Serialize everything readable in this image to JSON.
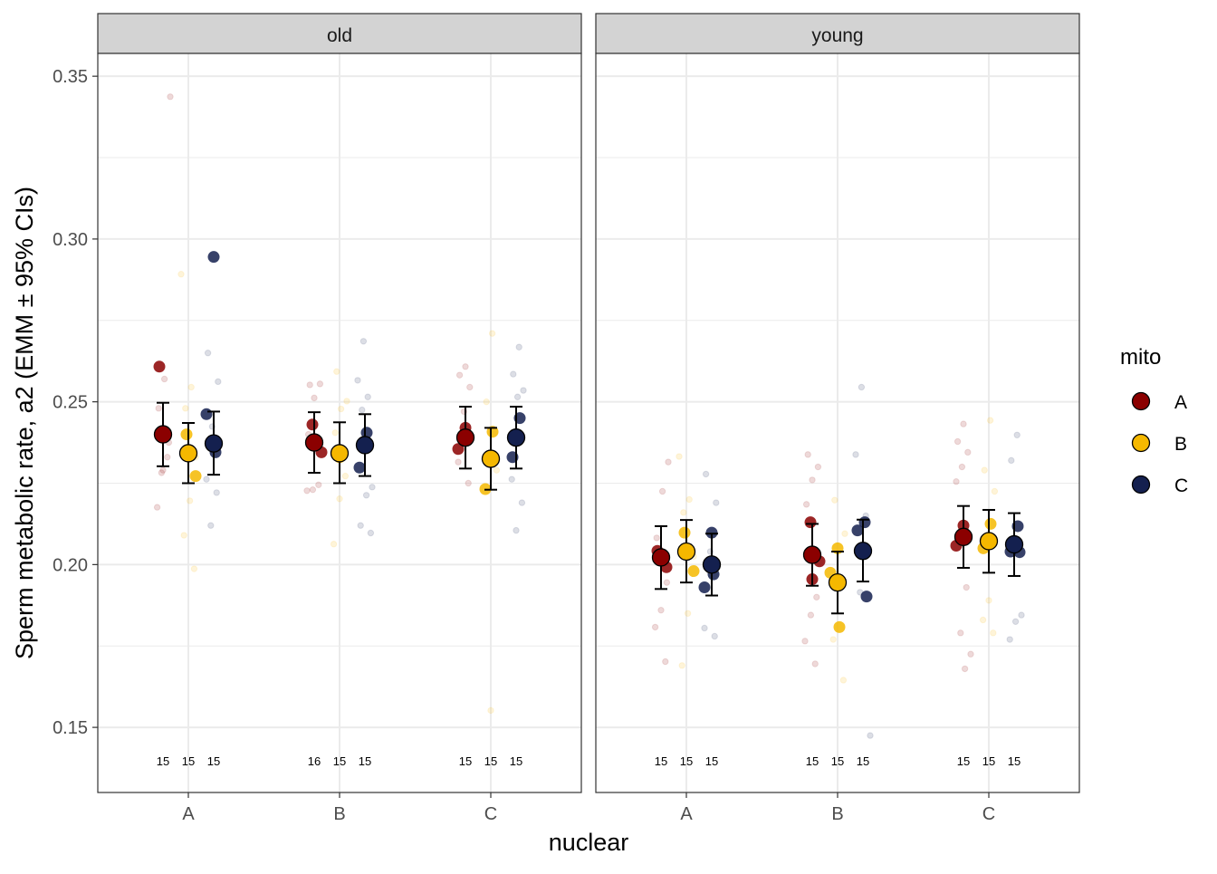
{
  "chart_data": {
    "type": "scatter",
    "subtype": "faceted dot plot with error bars (EMM ± 95% CI) and jittered raw points",
    "ylabel": "Sperm metabolic rate, a2 (EMM ± 95% CIs)",
    "xlabel": "nuclear",
    "ylim": [
      0.13,
      0.357
    ],
    "y_ticks": [
      "0.15",
      "0.20",
      "0.25",
      "0.30",
      "0.35"
    ],
    "categories": [
      "A",
      "B",
      "C"
    ],
    "legend": {
      "title": "mito",
      "position": "right",
      "entries": [
        {
          "label": "A",
          "color": "#8B0000"
        },
        {
          "label": "B",
          "color": "#F5B800"
        },
        {
          "label": "C",
          "color": "#14204F"
        }
      ]
    },
    "facets": [
      {
        "label": "old",
        "groups": [
          {
            "nuclear": "A",
            "mito": "A",
            "emm": 0.24,
            "lower": 0.2302,
            "upper": 0.2497,
            "n": "15",
            "sig": [
              0.2608
            ],
            "raw": [
              0.3437,
              0.257,
              0.248,
              0.2375,
              0.229,
              0.2176,
              0.233,
              0.2282
            ]
          },
          {
            "nuclear": "A",
            "mito": "B",
            "emm": 0.2342,
            "lower": 0.225,
            "upper": 0.2435,
            "n": "15",
            "sig": [
              0.24,
              0.2272
            ],
            "raw": [
              0.2892,
              0.2545,
              0.248,
              0.233,
              0.2196,
              0.209,
              0.1987
            ]
          },
          {
            "nuclear": "A",
            "mito": "C",
            "emm": 0.2372,
            "lower": 0.2276,
            "upper": 0.247,
            "n": "15",
            "sig": [
              0.2945,
              0.2462,
              0.2345
            ],
            "raw": [
              0.265,
              0.2562,
              0.2424,
              0.2262,
              0.2221,
              0.212
            ]
          },
          {
            "nuclear": "B",
            "mito": "A",
            "emm": 0.2375,
            "lower": 0.2282,
            "upper": 0.2468,
            "n": "16",
            "sig": [
              0.243,
              0.2345
            ],
            "raw": [
              0.2552,
              0.2555,
              0.2512,
              0.24,
              0.2245,
              0.223,
              0.2227
            ]
          },
          {
            "nuclear": "B",
            "mito": "B",
            "emm": 0.2342,
            "lower": 0.225,
            "upper": 0.2437,
            "n": "15",
            "sig": [
              0.233
            ],
            "raw": [
              0.2593,
              0.2502,
              0.2478,
              0.2405,
              0.2272,
              0.2202,
              0.2063
            ]
          },
          {
            "nuclear": "B",
            "mito": "C",
            "emm": 0.2367,
            "lower": 0.2272,
            "upper": 0.2462,
            "n": "15",
            "sig": [
              0.2405,
              0.2298
            ],
            "raw": [
              0.2686,
              0.2566,
              0.2515,
              0.2475,
              0.2238,
              0.2213,
              0.212,
              0.2097
            ]
          },
          {
            "nuclear": "C",
            "mito": "A",
            "emm": 0.239,
            "lower": 0.2295,
            "upper": 0.2485,
            "n": "15",
            "sig": [
              0.242,
              0.2355
            ],
            "raw": [
              0.2608,
              0.2582,
              0.2545,
              0.247,
              0.2315,
              0.225
            ]
          },
          {
            "nuclear": "C",
            "mito": "B",
            "emm": 0.2325,
            "lower": 0.223,
            "upper": 0.242,
            "n": "15",
            "sig": [
              0.2408,
              0.2232
            ],
            "raw": [
              0.271,
              0.25,
              0.229,
              0.1552
            ]
          },
          {
            "nuclear": "C",
            "mito": "C",
            "emm": 0.239,
            "lower": 0.2295,
            "upper": 0.2485,
            "n": "15",
            "sig": [
              0.245,
              0.233
            ],
            "raw": [
              0.2668,
              0.2585,
              0.2535,
              0.2515,
              0.2262,
              0.219,
              0.2105
            ]
          }
        ]
      },
      {
        "label": "young",
        "groups": [
          {
            "nuclear": "A",
            "mito": "A",
            "emm": 0.2022,
            "lower": 0.1925,
            "upper": 0.2118,
            "n": "15",
            "sig": [
              0.2042,
              0.1992
            ],
            "raw": [
              0.2315,
              0.2225,
              0.2082,
              0.1945,
              0.186,
              0.1808,
              0.1702
            ]
          },
          {
            "nuclear": "A",
            "mito": "B",
            "emm": 0.204,
            "lower": 0.1945,
            "upper": 0.2137,
            "n": "15",
            "sig": [
              0.2098,
              0.198
            ],
            "raw": [
              0.2332,
              0.22,
              0.216,
              0.2025,
              0.185,
              0.169
            ]
          },
          {
            "nuclear": "A",
            "mito": "C",
            "emm": 0.2,
            "lower": 0.1905,
            "upper": 0.2095,
            "n": "15",
            "sig": [
              0.2098,
              0.193,
              0.197
            ],
            "raw": [
              0.2278,
              0.219,
              0.204,
              0.1805,
              0.178
            ]
          },
          {
            "nuclear": "B",
            "mito": "A",
            "emm": 0.203,
            "lower": 0.1935,
            "upper": 0.2125,
            "n": "15",
            "sig": [
              0.213,
              0.201,
              0.1955
            ],
            "raw": [
              0.2338,
              0.23,
              0.226,
              0.2185,
              0.19,
              0.1845,
              0.1765,
              0.1695
            ]
          },
          {
            "nuclear": "B",
            "mito": "B",
            "emm": 0.1945,
            "lower": 0.185,
            "upper": 0.204,
            "n": "15",
            "sig": [
              0.205,
              0.1975,
              0.1808
            ],
            "raw": [
              0.2198,
              0.2095,
              0.193,
              0.177,
              0.1645
            ]
          },
          {
            "nuclear": "B",
            "mito": "C",
            "emm": 0.2042,
            "lower": 0.1948,
            "upper": 0.2138,
            "n": "15",
            "sig": [
              0.213,
              0.2105,
              0.1902
            ],
            "raw": [
              0.2545,
              0.2338,
              0.215,
              0.1915,
              0.1475
            ]
          },
          {
            "nuclear": "C",
            "mito": "A",
            "emm": 0.2085,
            "lower": 0.199,
            "upper": 0.218,
            "n": "15",
            "sig": [
              0.212,
              0.2058
            ],
            "raw": [
              0.2432,
              0.2378,
              0.2345,
              0.23,
              0.2255,
              0.193,
              0.179,
              0.1725,
              0.168
            ]
          },
          {
            "nuclear": "C",
            "mito": "B",
            "emm": 0.2072,
            "lower": 0.1975,
            "upper": 0.2168,
            "n": "15",
            "sig": [
              0.2125,
              0.205
            ],
            "raw": [
              0.2443,
              0.229,
              0.2225,
              0.189,
              0.183,
              0.179
            ]
          },
          {
            "nuclear": "C",
            "mito": "C",
            "emm": 0.2062,
            "lower": 0.1965,
            "upper": 0.2158,
            "n": "15",
            "sig": [
              0.2118,
              0.204,
              0.2038
            ],
            "raw": [
              0.2398,
              0.232,
              0.1845,
              0.1825,
              0.177
            ]
          }
        ]
      }
    ]
  }
}
